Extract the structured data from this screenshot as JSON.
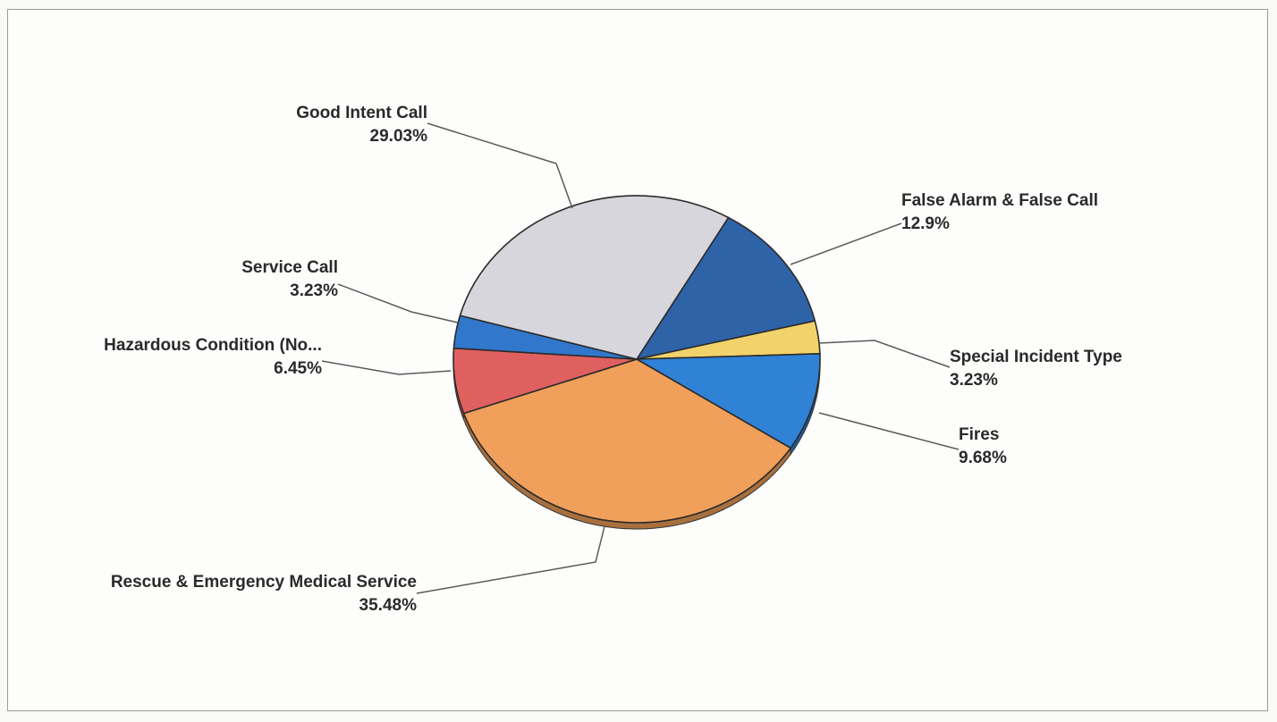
{
  "chart_data": {
    "type": "pie",
    "title": "",
    "slices": [
      {
        "label": "False Alarm & False Call",
        "percent_label": "12.9%",
        "value": 12.9,
        "color": "#2f63a8"
      },
      {
        "label": "Special Incident Type",
        "percent_label": "3.23%",
        "value": 3.23,
        "color": "#f2d36b"
      },
      {
        "label": "Fires",
        "percent_label": "9.68%",
        "value": 9.68,
        "color": "#2f82d6"
      },
      {
        "label": "Rescue & Emergency Medical Service",
        "percent_label": "35.48%",
        "value": 35.48,
        "color": "#f0a05a"
      },
      {
        "label": "Hazardous Condition (No...",
        "percent_label": "6.45%",
        "value": 6.45,
        "color": "#e06060"
      },
      {
        "label": "Service Call",
        "percent_label": "3.23%",
        "value": 3.23,
        "color": "#3178cc"
      },
      {
        "label": "Good Intent Call",
        "percent_label": "29.03%",
        "value": 29.03,
        "color": "#d6d6dc"
      }
    ],
    "legend": "none",
    "start_angle_deg": 60
  }
}
